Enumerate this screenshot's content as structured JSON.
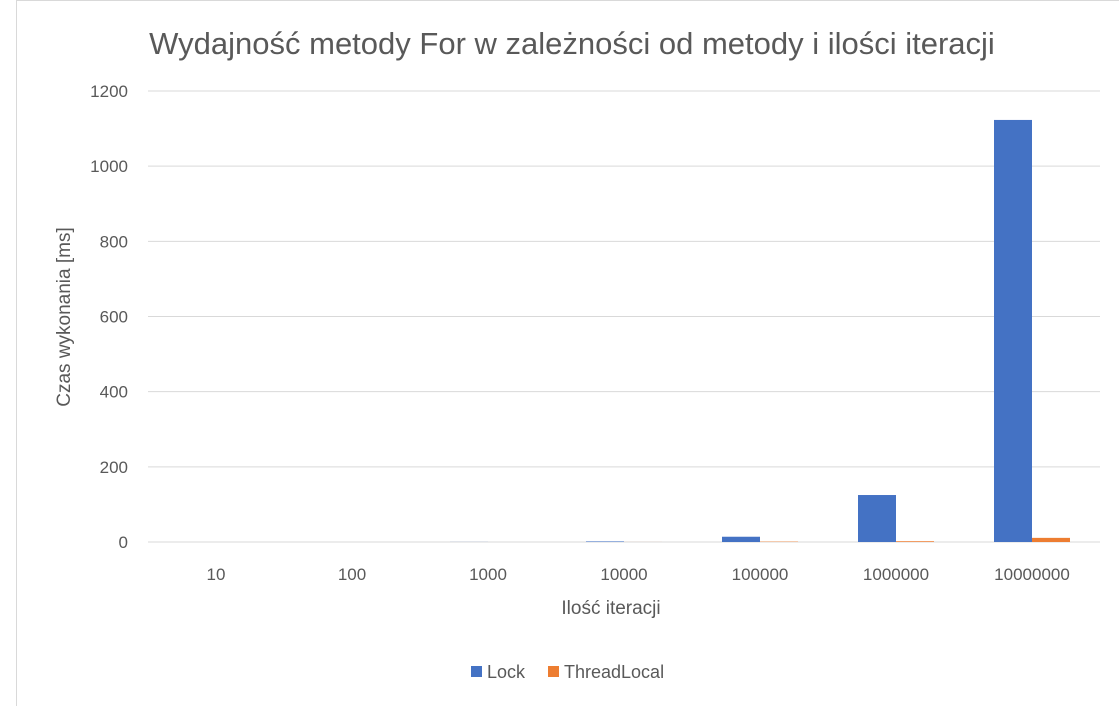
{
  "chart_data": {
    "type": "bar",
    "title": "Wydajność metody For w zależności od metody i ilości iteracji",
    "xlabel": "Ilość iteracji",
    "ylabel": "Czas wykonania [ms]",
    "categories": [
      "10",
      "100",
      "1000",
      "10000",
      "100000",
      "1000000",
      "10000000"
    ],
    "series": [
      {
        "name": "Lock",
        "color": "#4472c4",
        "values": [
          0,
          0,
          0.2,
          1.5,
          14,
          125,
          1123
        ]
      },
      {
        "name": "ThreadLocal",
        "color": "#ed7d31",
        "values": [
          0,
          0,
          0,
          0.1,
          1,
          2,
          11
        ]
      }
    ],
    "ylim": [
      0,
      1200
    ],
    "yticks": [
      "0",
      "200",
      "400",
      "600",
      "800",
      "1000",
      "1200"
    ],
    "grid": true,
    "legend_position": "bottom"
  }
}
